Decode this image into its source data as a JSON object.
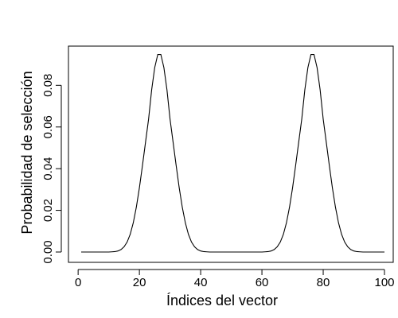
{
  "chart_data": {
    "type": "line",
    "title": "",
    "xlabel": "Índices del vector",
    "ylabel": "Probabilidad de selección",
    "xlim": [
      1,
      100
    ],
    "ylim": [
      0,
      0.095
    ],
    "x_ticks": [
      0,
      20,
      40,
      60,
      80,
      100
    ],
    "x_tick_labels": [
      "0",
      "20",
      "40",
      "60",
      "80",
      "100"
    ],
    "y_ticks": [
      0,
      0.02,
      0.04,
      0.06,
      0.08
    ],
    "y_tick_labels": [
      "0.00",
      "0.02",
      "0.04",
      "0.06",
      "0.08"
    ],
    "grid": false,
    "legend": "none",
    "line_color": "#000000",
    "series": [
      {
        "x": [
          1,
          2,
          3,
          4,
          5,
          6,
          7,
          8,
          9,
          10,
          11,
          12,
          13,
          14,
          15,
          16,
          17,
          18,
          19,
          20,
          21,
          22,
          23,
          24,
          25,
          26,
          27,
          28,
          29,
          30,
          31,
          32,
          33,
          34,
          35,
          36,
          37,
          38,
          39,
          40,
          41,
          42,
          43,
          44,
          45,
          46,
          47,
          48,
          49,
          50,
          51,
          52,
          53,
          54,
          55,
          56,
          57,
          58,
          59,
          60,
          61,
          62,
          63,
          64,
          65,
          66,
          67,
          68,
          69,
          70,
          71,
          72,
          73,
          74,
          75,
          76,
          77,
          78,
          79,
          80,
          81,
          82,
          83,
          84,
          85,
          86,
          87,
          88,
          89,
          90,
          91,
          92,
          93,
          94,
          95,
          96,
          97,
          98,
          99,
          100
        ],
        "values": [
          0,
          0,
          0,
          0,
          0,
          0,
          0,
          0,
          0,
          0,
          0.0001,
          0.0002,
          0.0005,
          0.0012,
          0.0025,
          0.0048,
          0.0085,
          0.014,
          0.0215,
          0.0308,
          0.0415,
          0.0527,
          0.0638,
          0.0778,
          0.0885,
          0.0948,
          0.0948,
          0.0885,
          0.0778,
          0.0638,
          0.0527,
          0.0415,
          0.0308,
          0.0215,
          0.014,
          0.0085,
          0.0048,
          0.0025,
          0.0012,
          0.0005,
          0.0002,
          0.0001,
          0,
          0,
          0,
          0,
          0,
          0,
          0,
          0,
          0,
          0,
          0,
          0,
          0,
          0,
          0,
          0,
          0,
          0,
          0.0001,
          0.0002,
          0.0005,
          0.0012,
          0.0025,
          0.0048,
          0.0085,
          0.014,
          0.0215,
          0.0308,
          0.0415,
          0.0527,
          0.0638,
          0.0778,
          0.0885,
          0.0948,
          0.0948,
          0.0885,
          0.0778,
          0.0638,
          0.0527,
          0.0415,
          0.0308,
          0.0215,
          0.014,
          0.0085,
          0.0048,
          0.0025,
          0.0012,
          0.0005,
          0.0002,
          0.0001,
          0,
          0,
          0,
          0,
          0,
          0,
          0,
          0
        ]
      }
    ]
  }
}
